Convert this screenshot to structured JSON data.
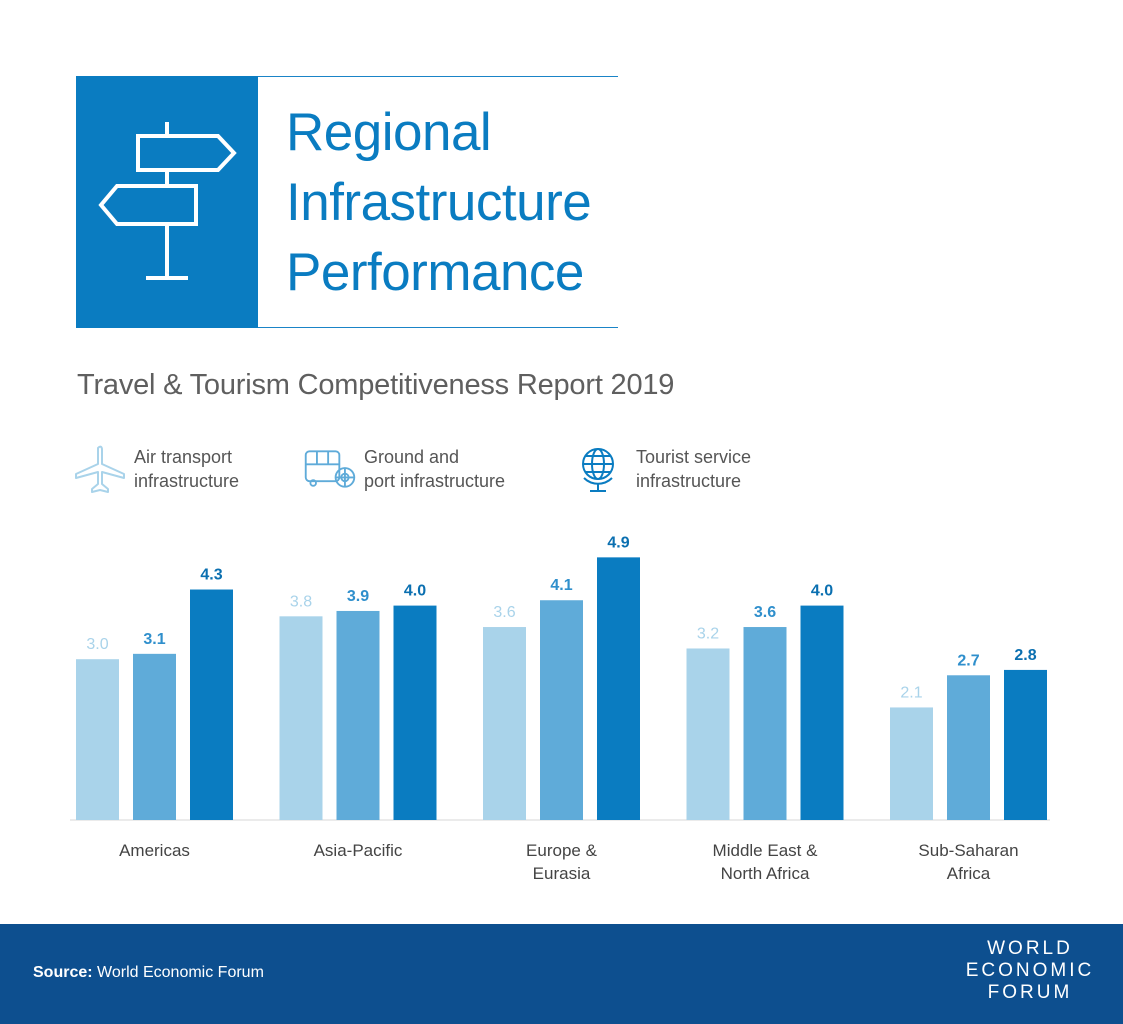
{
  "header": {
    "title_lines": [
      "Regional",
      "Infrastructure",
      "Performance"
    ]
  },
  "subtitle": "Travel & Tourism Competitiveness Report 2019",
  "legend": [
    {
      "icon": "airplane-icon",
      "lines": [
        "Air transport",
        "infrastructure"
      ],
      "color": "#a9d3ea"
    },
    {
      "icon": "bus-ship-icon",
      "lines": [
        "Ground and",
        "port infrastructure"
      ],
      "color": "#5fabd9"
    },
    {
      "icon": "globe-icon",
      "lines": [
        "Tourist service",
        "infrastructure"
      ],
      "color": "#0a7cc1"
    }
  ],
  "chart_data": {
    "type": "bar",
    "categories": [
      [
        "Americas"
      ],
      [
        "Asia-Pacific"
      ],
      [
        "Europe &",
        "Eurasia"
      ],
      [
        "Middle East &",
        "North Africa"
      ],
      [
        "Sub-Saharan",
        "Africa"
      ]
    ],
    "series": [
      {
        "name": "Air transport infrastructure",
        "values": [
          3.0,
          3.8,
          3.6,
          3.2,
          2.1
        ],
        "labels": [
          "3.0",
          "3.8",
          "3.6",
          "3.2",
          "2.1"
        ],
        "color": "#a9d3ea",
        "label_color": "#a9d3ea"
      },
      {
        "name": "Ground and port infrastructure",
        "values": [
          3.1,
          3.9,
          4.1,
          3.6,
          2.7
        ],
        "labels": [
          "3.1",
          "3.9",
          "4.1",
          "3.6",
          "2.7"
        ],
        "color": "#5fabd9",
        "label_color": "#2f8fcc"
      },
      {
        "name": "Tourist service infrastructure",
        "values": [
          4.3,
          4.0,
          4.9,
          4.0,
          2.8
        ],
        "labels": [
          "4.3",
          "4.0",
          "4.9",
          "4.0",
          "2.8"
        ],
        "color": "#0a7cc1",
        "label_color": "#0a6fb0"
      }
    ],
    "xlabel": "",
    "ylabel": "",
    "ylim": [
      0,
      5
    ],
    "grid": false,
    "legend_position": "top"
  },
  "footer": {
    "source_label": "Source:",
    "source_text": "World Economic Forum",
    "logo_lines": [
      "WORLD",
      "ECONOMIC",
      "FORUM"
    ]
  }
}
